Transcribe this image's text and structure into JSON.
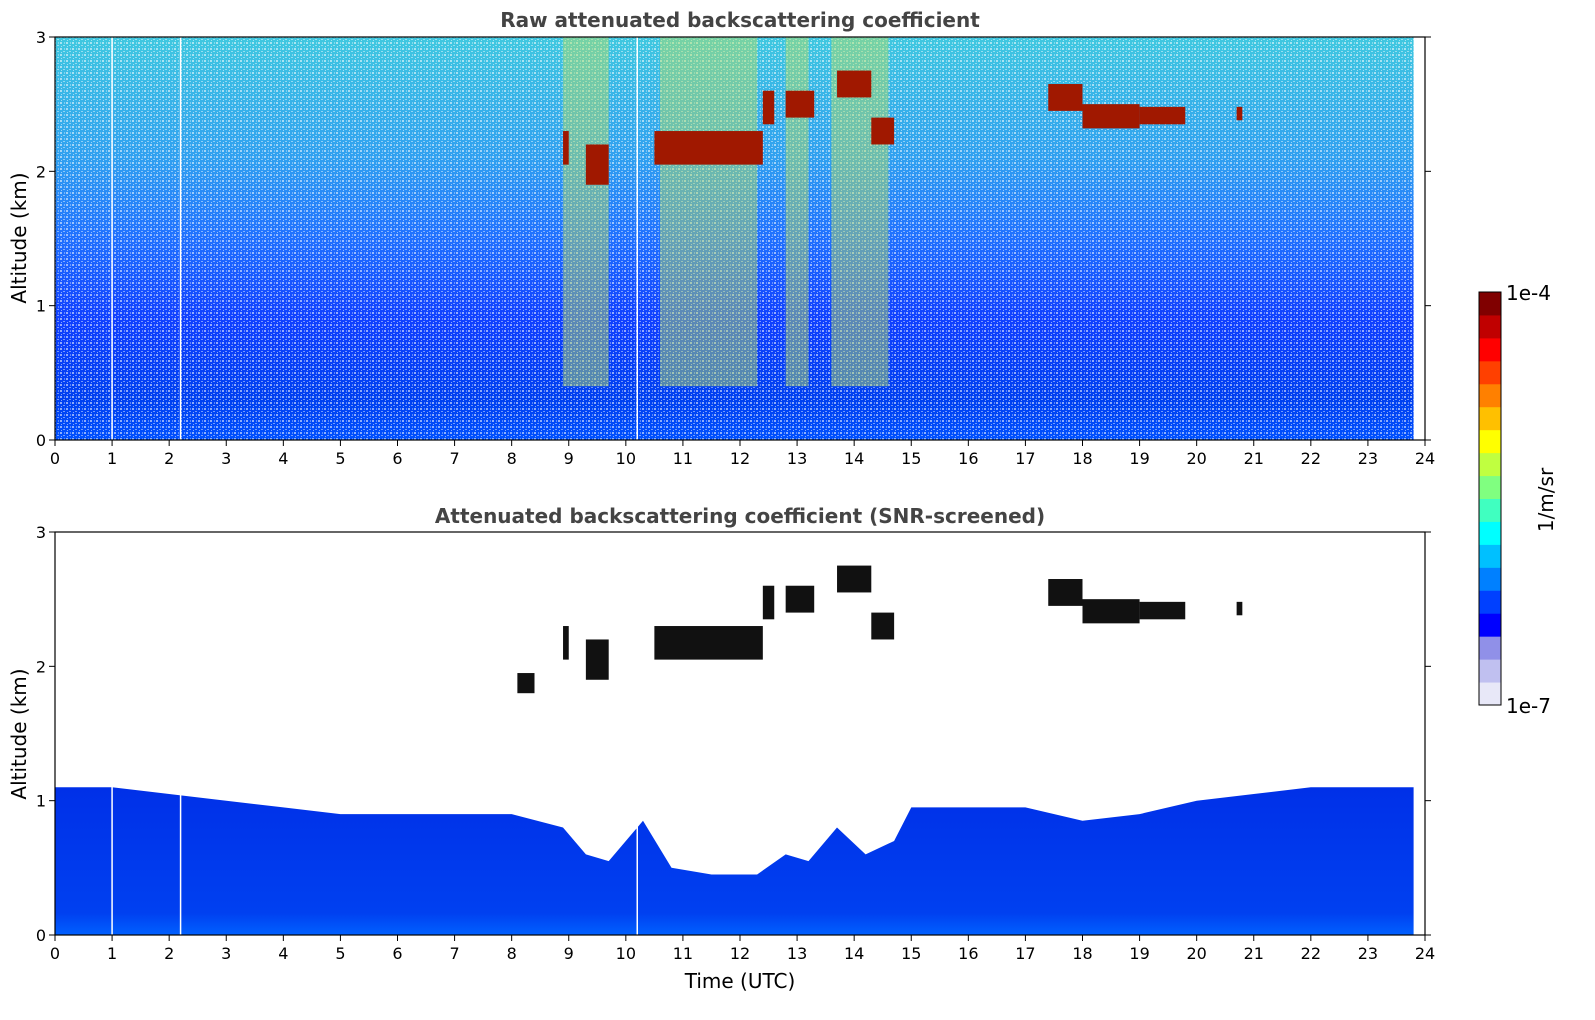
{
  "chart_data": [
    {
      "type": "heatmap",
      "title": "Raw attenuated backscattering coefficient",
      "xlabel": "",
      "ylabel": "Altitude (km)",
      "xlim": [
        0,
        24
      ],
      "ylim": [
        0,
        3
      ],
      "xticks": [
        "0",
        "1",
        "2",
        "3",
        "4",
        "5",
        "6",
        "7",
        "8",
        "9",
        "10",
        "11",
        "12",
        "13",
        "14",
        "15",
        "16",
        "17",
        "18",
        "19",
        "20",
        "21",
        "22",
        "23",
        "24"
      ],
      "yticks": [
        "0",
        "1",
        "2",
        "3"
      ],
      "data_extent_hours": [
        0,
        23.8
      ],
      "data_gaps_hours": [
        1.0,
        2.2,
        10.2
      ],
      "noise_columns_hours": [
        [
          8.9,
          9.7
        ],
        [
          10.6,
          12.3
        ],
        [
          12.8,
          13.2
        ],
        [
          13.6,
          14.6
        ]
      ],
      "cloud_layers": [
        {
          "hour_start": 8.9,
          "hour_end": 9.0,
          "alt_km": [
            2.05,
            2.3
          ]
        },
        {
          "hour_start": 9.3,
          "hour_end": 9.7,
          "alt_km": [
            1.9,
            2.2
          ]
        },
        {
          "hour_start": 10.5,
          "hour_end": 12.4,
          "alt_km": [
            2.05,
            2.3
          ]
        },
        {
          "hour_start": 12.4,
          "hour_end": 12.6,
          "alt_km": [
            2.35,
            2.6
          ]
        },
        {
          "hour_start": 12.8,
          "hour_end": 13.3,
          "alt_km": [
            2.4,
            2.6
          ]
        },
        {
          "hour_start": 13.7,
          "hour_end": 14.3,
          "alt_km": [
            2.55,
            2.75
          ]
        },
        {
          "hour_start": 14.3,
          "hour_end": 14.7,
          "alt_km": [
            2.2,
            2.4
          ]
        },
        {
          "hour_start": 17.4,
          "hour_end": 18.0,
          "alt_km": [
            2.45,
            2.65
          ]
        },
        {
          "hour_start": 18.0,
          "hour_end": 19.0,
          "alt_km": [
            2.32,
            2.5
          ]
        },
        {
          "hour_start": 19.0,
          "hour_end": 19.8,
          "alt_km": [
            2.35,
            2.48
          ]
        },
        {
          "hour_start": 20.7,
          "hour_end": 20.8,
          "alt_km": [
            2.38,
            2.48
          ]
        }
      ]
    },
    {
      "type": "heatmap",
      "title": "Attenuated backscattering coefficient (SNR-screened)",
      "xlabel": "Time (UTC)",
      "ylabel": "Altitude (km)",
      "xlim": [
        0,
        24
      ],
      "ylim": [
        0,
        3
      ],
      "xticks": [
        "0",
        "1",
        "2",
        "3",
        "4",
        "5",
        "6",
        "7",
        "8",
        "9",
        "10",
        "11",
        "12",
        "13",
        "14",
        "15",
        "16",
        "17",
        "18",
        "19",
        "20",
        "21",
        "22",
        "23",
        "24"
      ],
      "yticks": [
        "0",
        "1",
        "2",
        "3"
      ],
      "data_extent_hours": [
        0,
        23.8
      ],
      "data_gaps_hours": [
        1.0,
        2.2,
        10.2
      ],
      "boundary_layer_top_km": [
        [
          0,
          1.1
        ],
        [
          1,
          1.1
        ],
        [
          2,
          1.05
        ],
        [
          3,
          1.0
        ],
        [
          4,
          0.95
        ],
        [
          5,
          0.9
        ],
        [
          6,
          0.9
        ],
        [
          7,
          0.9
        ],
        [
          8,
          0.9
        ],
        [
          8.9,
          0.8
        ],
        [
          9.3,
          0.6
        ],
        [
          9.7,
          0.55
        ],
        [
          10.3,
          0.85
        ],
        [
          10.8,
          0.5
        ],
        [
          11.5,
          0.45
        ],
        [
          12.3,
          0.45
        ],
        [
          12.8,
          0.6
        ],
        [
          13.2,
          0.55
        ],
        [
          13.7,
          0.8
        ],
        [
          14.2,
          0.6
        ],
        [
          14.7,
          0.7
        ],
        [
          15,
          0.95
        ],
        [
          16,
          0.95
        ],
        [
          17,
          0.95
        ],
        [
          18,
          0.85
        ],
        [
          19,
          0.9
        ],
        [
          20,
          1.0
        ],
        [
          21,
          1.05
        ],
        [
          22,
          1.1
        ],
        [
          23,
          1.1
        ],
        [
          23.8,
          1.1
        ]
      ],
      "cloud_layers": [
        {
          "hour_start": 8.1,
          "hour_end": 8.4,
          "alt_km": [
            1.8,
            1.95
          ]
        },
        {
          "hour_start": 8.9,
          "hour_end": 9.0,
          "alt_km": [
            2.05,
            2.3
          ]
        },
        {
          "hour_start": 9.3,
          "hour_end": 9.7,
          "alt_km": [
            1.9,
            2.2
          ]
        },
        {
          "hour_start": 10.5,
          "hour_end": 12.4,
          "alt_km": [
            2.05,
            2.3
          ]
        },
        {
          "hour_start": 12.4,
          "hour_end": 12.6,
          "alt_km": [
            2.35,
            2.6
          ]
        },
        {
          "hour_start": 12.8,
          "hour_end": 13.3,
          "alt_km": [
            2.4,
            2.6
          ]
        },
        {
          "hour_start": 13.7,
          "hour_end": 14.3,
          "alt_km": [
            2.55,
            2.75
          ]
        },
        {
          "hour_start": 14.3,
          "hour_end": 14.7,
          "alt_km": [
            2.2,
            2.4
          ]
        },
        {
          "hour_start": 17.4,
          "hour_end": 18.0,
          "alt_km": [
            2.45,
            2.65
          ]
        },
        {
          "hour_start": 18.0,
          "hour_end": 19.0,
          "alt_km": [
            2.32,
            2.5
          ]
        },
        {
          "hour_start": 19.0,
          "hour_end": 19.8,
          "alt_km": [
            2.35,
            2.48
          ]
        },
        {
          "hour_start": 20.7,
          "hour_end": 20.8,
          "alt_km": [
            2.38,
            2.48
          ]
        }
      ]
    }
  ],
  "colorbar": {
    "label": "1/m/sr",
    "max_label": "1e-4",
    "min_label": "1e-7",
    "scale": "log",
    "colormap": [
      "#e8e8f8",
      "#c0c0f0",
      "#9090e8",
      "#0000ff",
      "#0040ff",
      "#0080ff",
      "#00c0ff",
      "#00ffff",
      "#40ffc0",
      "#80ff80",
      "#c0ff40",
      "#ffff00",
      "#ffc000",
      "#ff8000",
      "#ff4000",
      "#ff0000",
      "#c00000",
      "#800000"
    ]
  }
}
